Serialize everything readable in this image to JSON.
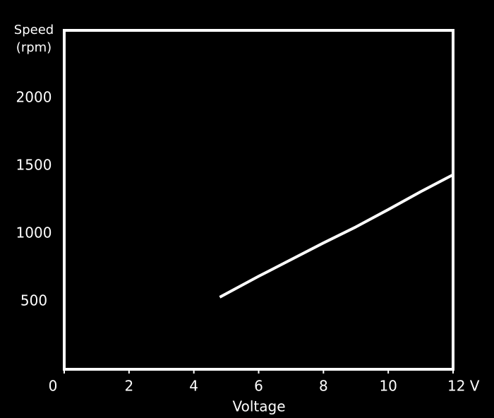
{
  "chart_data": {
    "type": "line",
    "y_label_lines": [
      "Speed",
      "(rpm)"
    ],
    "x_label": "Voltage",
    "x": [
      4.8,
      6,
      8,
      9,
      10,
      11,
      12
    ],
    "series": [
      {
        "color": "#ffffff",
        "values": [
          532,
          686,
          932,
          1050,
          1178,
          1310,
          1435
        ]
      }
    ],
    "xlim": [
      0,
      12
    ],
    "xticks": [
      0,
      2,
      4,
      6,
      8,
      10,
      {
        "value": 12,
        "label": "12 V"
      }
    ],
    "ylim": [
      0,
      2500
    ],
    "yticks": [
      500,
      1000,
      1500,
      2000
    ],
    "grid": true
  }
}
